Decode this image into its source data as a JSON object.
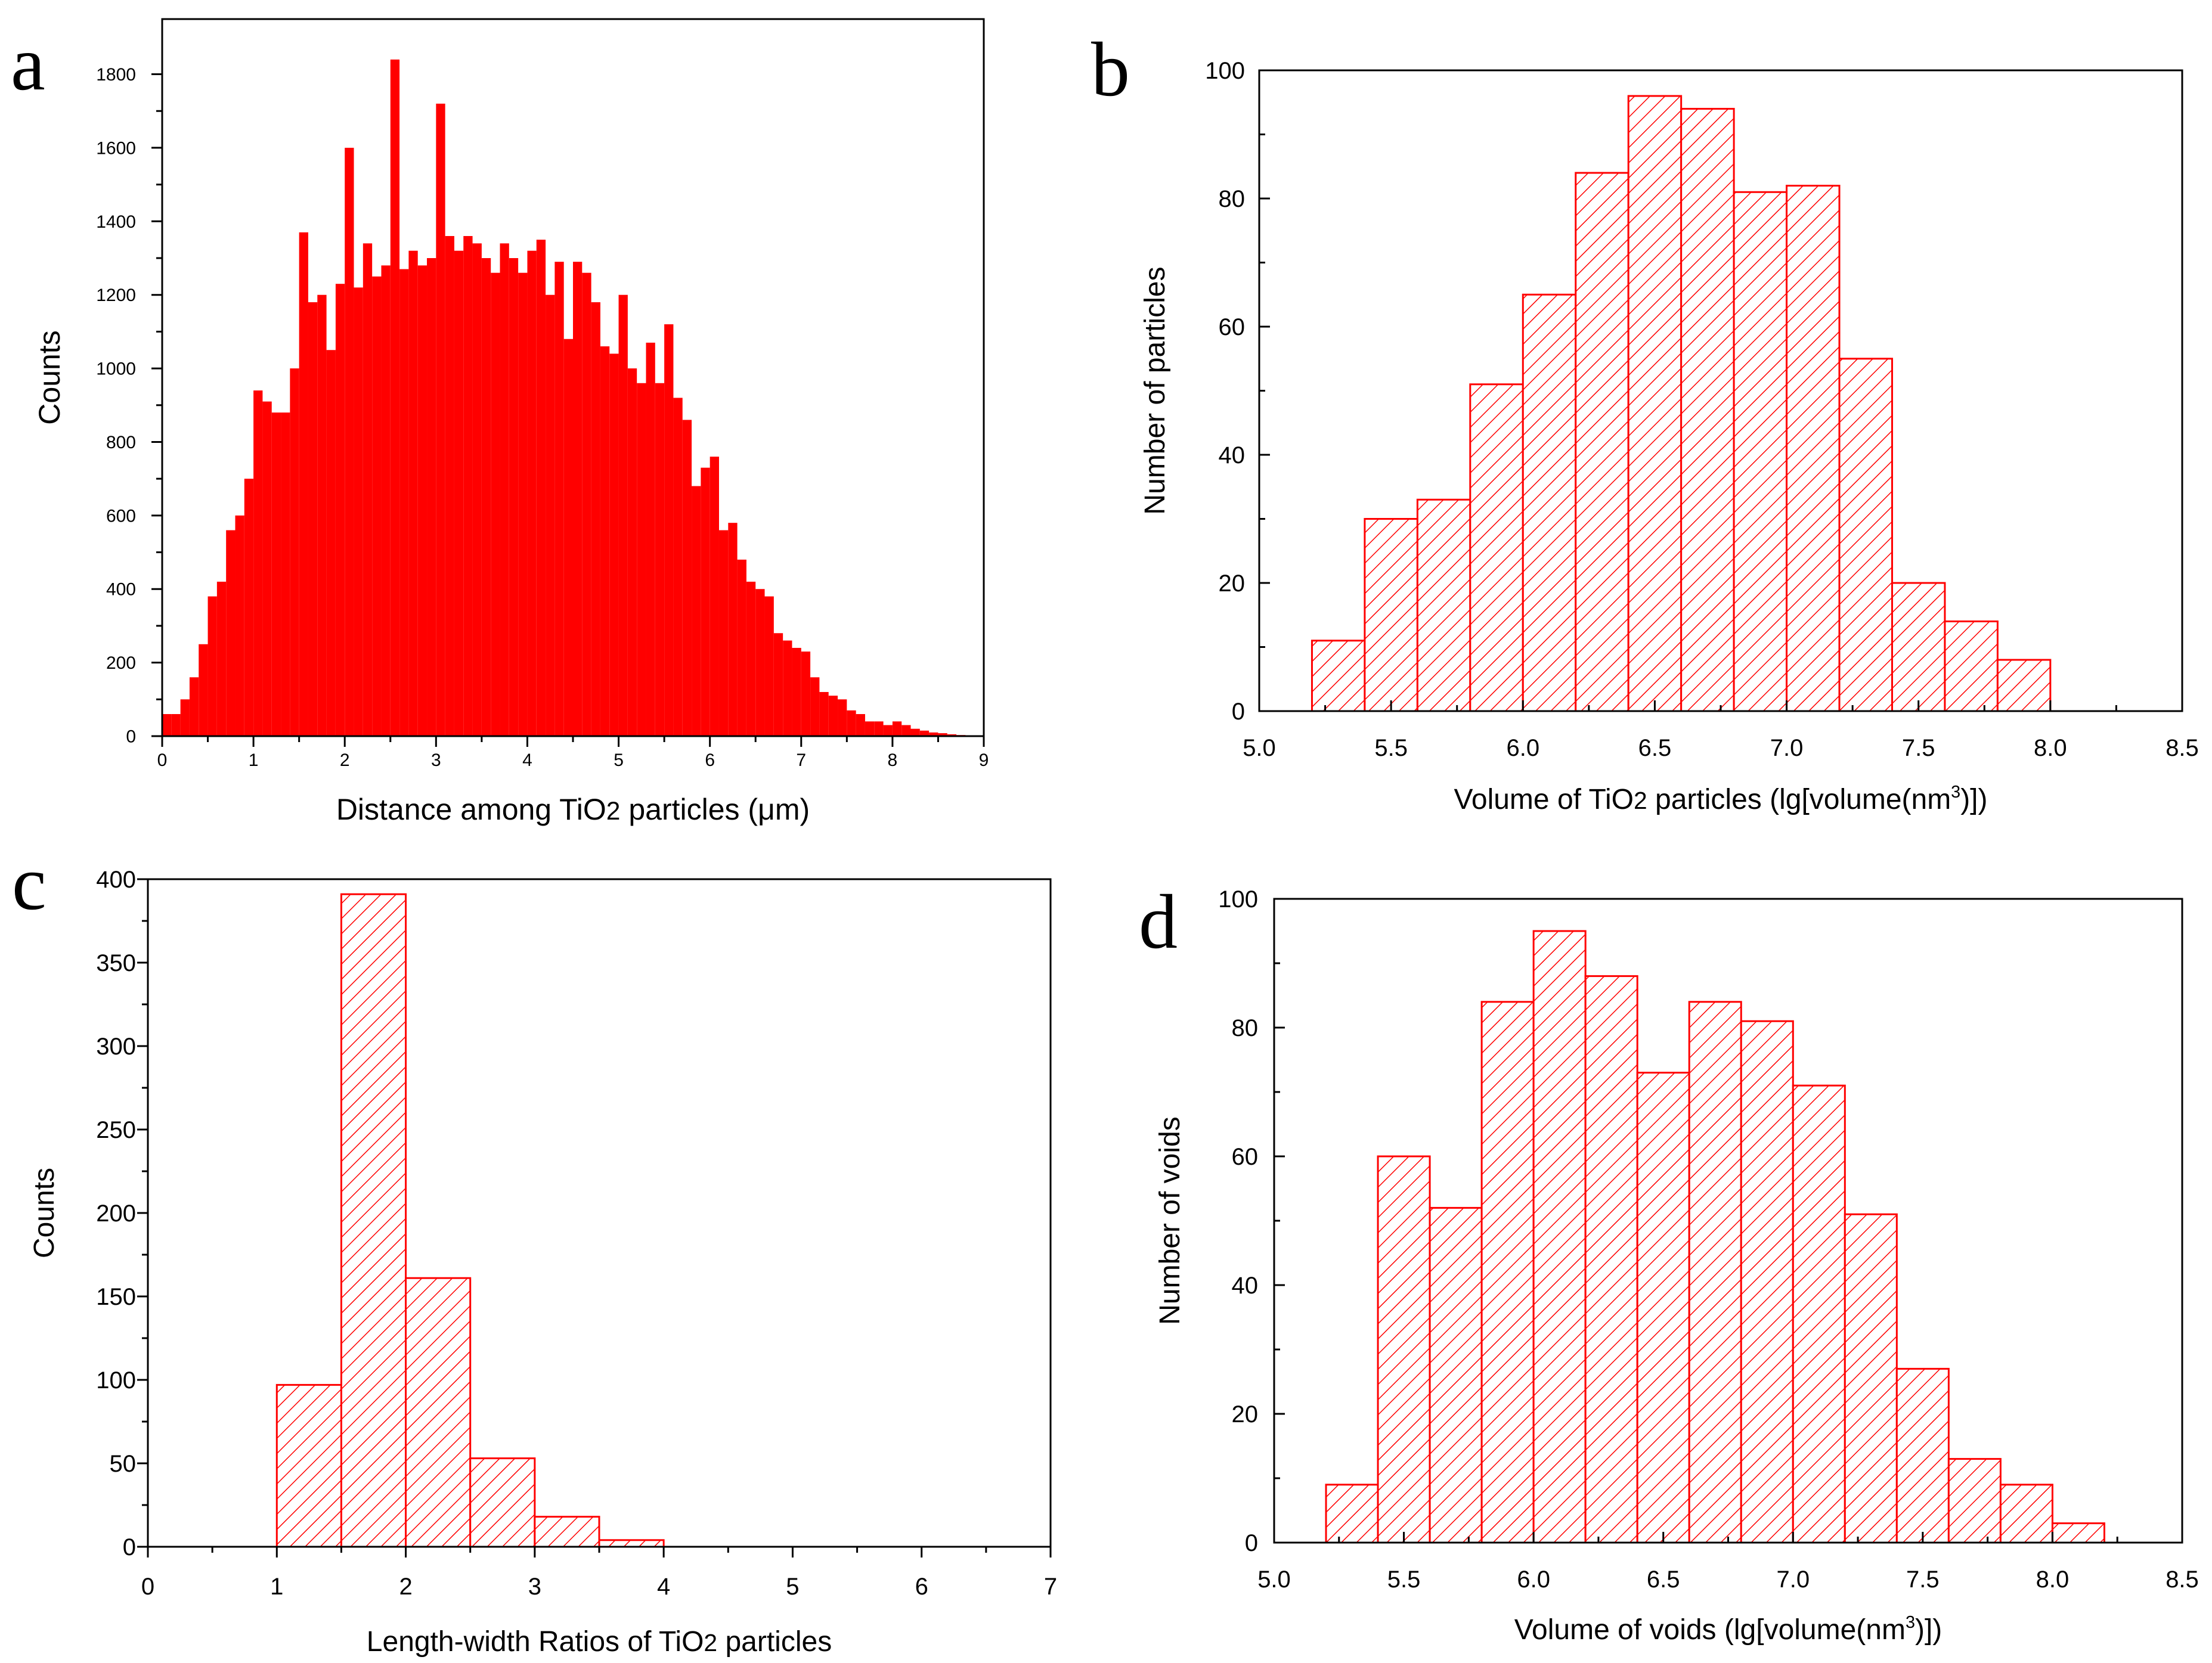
{
  "figure": {
    "colors": {
      "accent": "#ff0000",
      "axis": "#000000",
      "background": "#ffffff"
    }
  },
  "chart_data": [
    {
      "panel": "a",
      "type": "bar",
      "title": "",
      "xlabel": "Distance among TiO2 particles (μm)",
      "xlabel_parts": {
        "pre": "Distance among TiO",
        "sub": "2",
        "post": " particles (μm)"
      },
      "ylabel": "Counts",
      "xlim": [
        0,
        9
      ],
      "ylim": [
        0,
        1950
      ],
      "xticks": [
        "0",
        "1",
        "2",
        "3",
        "4",
        "5",
        "6",
        "7",
        "8",
        "9"
      ],
      "yticks": [
        "0",
        "200",
        "400",
        "600",
        "800",
        "1000",
        "1200",
        "1400",
        "1600",
        "1800"
      ],
      "bin_width": 0.1,
      "x": [
        0.05,
        0.15,
        0.25,
        0.35,
        0.45,
        0.55,
        0.65,
        0.75,
        0.85,
        0.95,
        1.05,
        1.15,
        1.25,
        1.35,
        1.45,
        1.55,
        1.65,
        1.75,
        1.85,
        1.95,
        2.05,
        2.15,
        2.25,
        2.35,
        2.45,
        2.55,
        2.65,
        2.75,
        2.85,
        2.95,
        3.05,
        3.15,
        3.25,
        3.35,
        3.45,
        3.55,
        3.65,
        3.75,
        3.85,
        3.95,
        4.05,
        4.15,
        4.25,
        4.35,
        4.45,
        4.55,
        4.65,
        4.75,
        4.85,
        4.95,
        5.05,
        5.15,
        5.25,
        5.35,
        5.45,
        5.55,
        5.65,
        5.75,
        5.85,
        5.95,
        6.05,
        6.15,
        6.25,
        6.35,
        6.45,
        6.55,
        6.65,
        6.75,
        6.85,
        6.95,
        7.05,
        7.15,
        7.25,
        7.35,
        7.45,
        7.55,
        7.65,
        7.75,
        7.85,
        7.95,
        8.05,
        8.15,
        8.25,
        8.35,
        8.45,
        8.55,
        8.65,
        8.75,
        8.85,
        8.95
      ],
      "values": [
        60,
        60,
        100,
        160,
        250,
        380,
        420,
        560,
        600,
        700,
        940,
        910,
        880,
        880,
        1000,
        1370,
        1180,
        1200,
        1050,
        1230,
        1600,
        1220,
        1340,
        1250,
        1280,
        1840,
        1270,
        1320,
        1280,
        1300,
        1720,
        1360,
        1320,
        1360,
        1340,
        1300,
        1260,
        1340,
        1300,
        1260,
        1320,
        1350,
        1200,
        1290,
        1080,
        1290,
        1260,
        1180,
        1060,
        1040,
        1200,
        1000,
        960,
        1070,
        960,
        1120,
        920,
        860,
        680,
        730,
        760,
        560,
        580,
        480,
        420,
        400,
        380,
        280,
        260,
        240,
        230,
        160,
        120,
        110,
        100,
        70,
        60,
        40,
        40,
        30,
        40,
        30,
        20,
        15,
        10,
        8,
        5,
        3,
        2,
        1
      ]
    },
    {
      "panel": "b",
      "type": "bar",
      "title": "",
      "xlabel": "Volume of TiO2 particles (lg[volume(nm3)])",
      "xlabel_parts": {
        "pre": "Volume of TiO",
        "sub": "2",
        "mid": " particles (lg[volume(nm",
        "sup": "3",
        "post": ")])"
      },
      "ylabel": "Number of particles",
      "xlim": [
        5.0,
        8.5
      ],
      "ylim": [
        0,
        100
      ],
      "xticks": [
        "5.0",
        "5.5",
        "6.0",
        "6.5",
        "7.0",
        "7.5",
        "8.0",
        "8.5"
      ],
      "yticks": [
        "0",
        "20",
        "40",
        "60",
        "80",
        "100"
      ],
      "bin_width": 0.2,
      "x": [
        5.3,
        5.5,
        5.7,
        5.9,
        6.1,
        6.3,
        6.5,
        6.7,
        6.9,
        7.1,
        7.3,
        7.5,
        7.7,
        7.9
      ],
      "values": [
        11,
        30,
        33,
        51,
        65,
        84,
        96,
        94,
        81,
        82,
        55,
        20,
        14,
        8
      ]
    },
    {
      "panel": "c",
      "type": "bar",
      "title": "",
      "xlabel": "Length-width Ratios of TiO2 particles",
      "xlabel_parts": {
        "pre": "Length-width Ratios of TiO",
        "sub": "2",
        "post": " particles"
      },
      "ylabel": "Counts",
      "xlim": [
        0,
        7
      ],
      "ylim": [
        0,
        400
      ],
      "xticks": [
        "0",
        "1",
        "2",
        "3",
        "4",
        "5",
        "6",
        "7"
      ],
      "yticks": [
        "0",
        "50",
        "100",
        "150",
        "200",
        "250",
        "300",
        "350",
        "400"
      ],
      "bin_width": 0.5,
      "x": [
        1.25,
        1.75,
        2.25,
        2.75,
        3.25,
        3.75
      ],
      "values": [
        97,
        391,
        161,
        53,
        18,
        4
      ]
    },
    {
      "panel": "d",
      "type": "bar",
      "title": "",
      "xlabel": "Volume of voids (lg[volume(nm3)])",
      "xlabel_parts": {
        "pre": "Volume of voids (lg[volume(nm",
        "sup": "3",
        "post": ")])"
      },
      "ylabel": "Number of voids",
      "xlim": [
        5.0,
        8.5
      ],
      "ylim": [
        0,
        100
      ],
      "xticks": [
        "5.0",
        "5.5",
        "6.0",
        "6.5",
        "7.0",
        "7.5",
        "8.0",
        "8.5"
      ],
      "yticks": [
        "0",
        "20",
        "40",
        "60",
        "80",
        "100"
      ],
      "bin_width": 0.2,
      "x": [
        5.3,
        5.5,
        5.7,
        5.9,
        6.1,
        6.3,
        6.5,
        6.7,
        6.9,
        7.1,
        7.3,
        7.5,
        7.7,
        7.9,
        8.1
      ],
      "values": [
        9,
        60,
        52,
        84,
        95,
        88,
        73,
        84,
        81,
        71,
        51,
        27,
        13,
        9,
        3
      ]
    }
  ]
}
